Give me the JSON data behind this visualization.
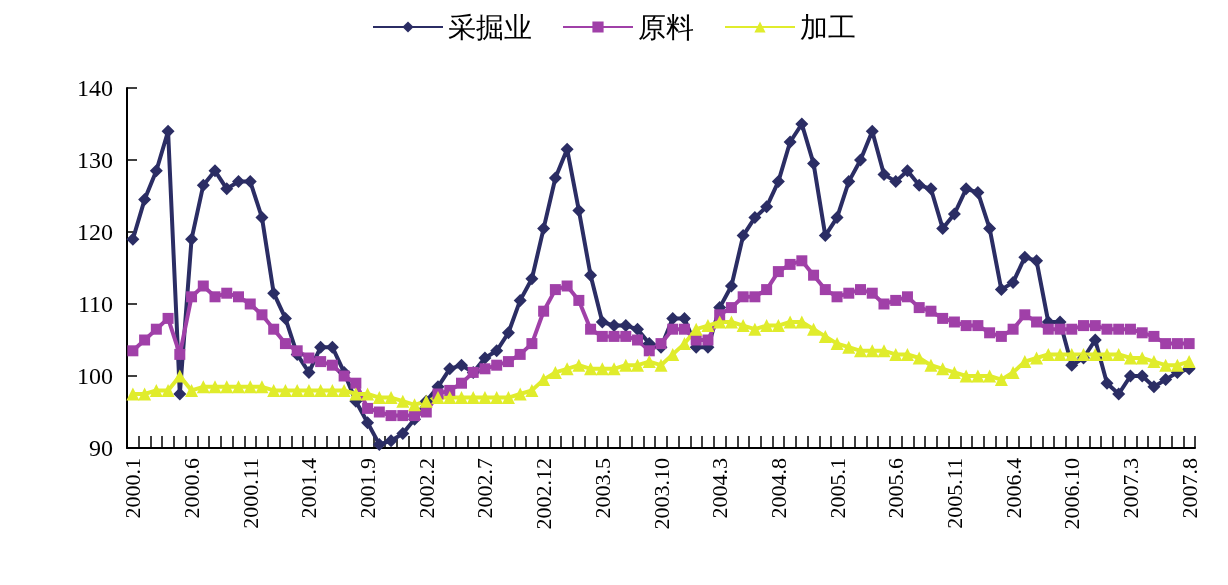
{
  "chart_data": {
    "type": "line",
    "legend": "top",
    "grid": false,
    "ylim": [
      90,
      140
    ],
    "yticks": [
      90,
      100,
      110,
      120,
      130,
      140
    ],
    "categories": [
      "2000.1",
      null,
      null,
      null,
      null,
      "2000.6",
      null,
      null,
      null,
      null,
      "2000.11",
      null,
      null,
      null,
      null,
      "2001.4",
      null,
      null,
      null,
      null,
      "2001.9",
      null,
      null,
      null,
      null,
      "2002.2",
      null,
      null,
      null,
      null,
      "2002.7",
      null,
      null,
      null,
      null,
      "2002.12",
      null,
      null,
      null,
      null,
      "2003.5",
      null,
      null,
      null,
      null,
      "2003.10",
      null,
      null,
      null,
      null,
      "2004.3",
      null,
      null,
      null,
      null,
      "2004.8",
      null,
      null,
      null,
      null,
      "2005.1",
      null,
      null,
      null,
      null,
      "2005.6",
      null,
      null,
      null,
      null,
      "2005.11",
      null,
      null,
      null,
      null,
      "2006.4",
      null,
      null,
      null,
      null,
      "2006.10",
      null,
      null,
      null,
      null,
      "2007.3",
      null,
      null,
      null,
      null,
      "2007.8"
    ],
    "series": [
      {
        "name": "采掘业",
        "color": "#2b2d64",
        "marker": "diamond",
        "values": [
          119,
          124.5,
          128.5,
          134,
          97.5,
          119,
          126.5,
          128.5,
          126,
          127,
          127,
          122,
          111.5,
          108,
          103,
          100.5,
          104,
          104,
          100.5,
          96.5,
          93.5,
          90.5,
          91,
          92,
          94,
          96.5,
          98.5,
          101,
          101.5,
          100.5,
          102.5,
          103.5,
          106,
          110.5,
          113.5,
          120.5,
          127.5,
          131.5,
          123,
          114,
          107.5,
          107,
          107,
          106.5,
          104.5,
          104,
          108,
          108,
          104,
          104,
          109.5,
          112.5,
          119.5,
          122,
          123.5,
          127,
          132.5,
          135,
          129.5,
          119.5,
          122,
          127,
          130,
          134,
          128,
          127,
          128.5,
          126.5,
          126,
          120.5,
          122.5,
          126,
          125.5,
          120.5,
          112,
          113,
          116.5,
          116,
          107.5,
          107.5,
          101.5,
          102.5,
          105,
          99,
          97.5,
          100,
          100,
          98.5,
          99.5,
          100.5,
          101
        ]
      },
      {
        "name": "原料",
        "color": "#a040a8",
        "marker": "square",
        "values": [
          103.5,
          105,
          106.5,
          108,
          103,
          111,
          112.5,
          111,
          111.5,
          111,
          110,
          108.5,
          106.5,
          104.5,
          103.5,
          102.5,
          102,
          101.5,
          100,
          99,
          95.5,
          95,
          94.5,
          94.5,
          94.5,
          95,
          97.5,
          98,
          99,
          100.5,
          101,
          101.5,
          102,
          103,
          104.5,
          109,
          112,
          112.5,
          110.5,
          106.5,
          105.5,
          105.5,
          105.5,
          105,
          103.5,
          104.5,
          106.5,
          106.5,
          105,
          105,
          108.5,
          109.5,
          111,
          111,
          112,
          114.5,
          115.5,
          116,
          114,
          112,
          111,
          111.5,
          112,
          111.5,
          110,
          110.5,
          111,
          109.5,
          109,
          108,
          107.5,
          107,
          107,
          106,
          105.5,
          106.5,
          108.5,
          107.5,
          106.5,
          106.5,
          106.5,
          107,
          107,
          106.5,
          106.5,
          106.5,
          106,
          105.5,
          104.5,
          104.5,
          104.5
        ]
      },
      {
        "name": "加工",
        "color": "#e0ec2c",
        "marker": "triangle",
        "values": [
          97.5,
          97.5,
          98,
          98,
          100,
          98,
          98.5,
          98.5,
          98.5,
          98.5,
          98.5,
          98.5,
          98,
          98,
          98,
          98,
          98,
          98,
          98,
          97.5,
          97.5,
          97,
          97,
          96.5,
          96,
          96.5,
          97,
          97,
          97,
          97,
          97,
          97,
          97,
          97.5,
          98,
          99.5,
          100.5,
          101,
          101.5,
          101,
          101,
          101,
          101.5,
          101.5,
          102,
          101.5,
          103,
          104.5,
          106.5,
          107,
          107.5,
          107.5,
          107,
          106.5,
          107,
          107,
          107.5,
          107.5,
          106.5,
          105.5,
          104.5,
          104,
          103.5,
          103.5,
          103.5,
          103,
          103,
          102.5,
          101.5,
          101,
          100.5,
          100,
          100,
          100,
          99.5,
          100.5,
          102,
          102.5,
          103,
          103,
          103,
          103,
          103,
          103,
          103,
          102.5,
          102.5,
          102,
          101.5,
          101.5,
          102
        ]
      }
    ]
  }
}
